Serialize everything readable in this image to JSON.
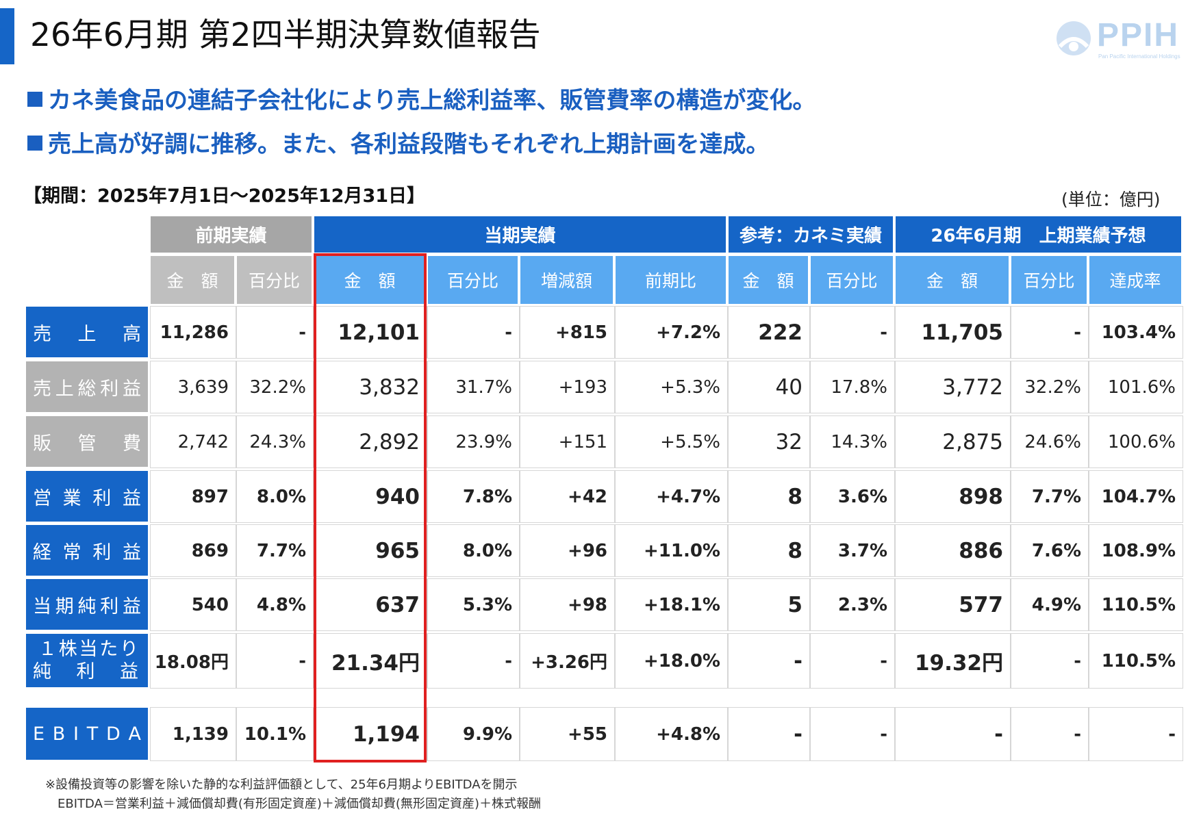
{
  "title": "26年6月期 第2四半期決算数値報告",
  "logo": {
    "text": "PPIH",
    "subtext": "Pan Pacific International Holdings"
  },
  "bullets": [
    "カネ美食品の連結子会社化により売上総利益率、販管費率の構造が変化。",
    "売上高が好調に推移。また、各利益段階もそれぞれ上期計画を達成。"
  ],
  "period": "【期間：2025年7月1日〜2025年12月31日】",
  "unit": "(単位：億円)",
  "table": {
    "groups": [
      "前期実績",
      "当期実績",
      "参考：カネミ実績",
      "26年6月期　上期業績予想"
    ],
    "subheaders": [
      "金　額",
      "百分比",
      "金　額",
      "百分比",
      "増減額",
      "前期比",
      "金　額",
      "百分比",
      "金　額",
      "百分比",
      "達成率"
    ],
    "rows": [
      {
        "label": [
          "売",
          "上",
          "高"
        ],
        "cells": [
          "11,286",
          "-",
          "12,101",
          "-",
          "+815",
          "+7.2%",
          "222",
          "-",
          "11,705",
          "-",
          "103.4%"
        ]
      },
      {
        "label": [
          "売",
          "上",
          "総",
          "利",
          "益"
        ],
        "cells": [
          "3,639",
          "32.2%",
          "3,832",
          "31.7%",
          "+193",
          "+5.3%",
          "40",
          "17.8%",
          "3,772",
          "32.2%",
          "101.6%"
        ]
      },
      {
        "label": [
          "販",
          "管",
          "費"
        ],
        "cells": [
          "2,742",
          "24.3%",
          "2,892",
          "23.9%",
          "+151",
          "+5.5%",
          "32",
          "14.3%",
          "2,875",
          "24.6%",
          "100.6%"
        ]
      },
      {
        "label": [
          "営",
          "業",
          "利",
          "益"
        ],
        "cells": [
          "897",
          "8.0%",
          "940",
          "7.8%",
          "+42",
          "+4.7%",
          "8",
          "3.6%",
          "898",
          "7.7%",
          "104.7%"
        ]
      },
      {
        "label": [
          "経",
          "常",
          "利",
          "益"
        ],
        "cells": [
          "869",
          "7.7%",
          "965",
          "8.0%",
          "+96",
          "+11.0%",
          "8",
          "3.7%",
          "886",
          "7.6%",
          "108.9%"
        ]
      },
      {
        "label": [
          "当",
          "期",
          "純",
          "利",
          "益"
        ],
        "cells": [
          "540",
          "4.8%",
          "637",
          "5.3%",
          "+98",
          "+18.1%",
          "5",
          "2.3%",
          "577",
          "4.9%",
          "110.5%"
        ]
      },
      {
        "label_line1": [
          "１",
          "株",
          "当",
          "た",
          "り"
        ],
        "label_line2": [
          "純",
          "利",
          "益"
        ],
        "cells": [
          "18.08円",
          "-",
          "21.34円",
          "-",
          "+3.26円",
          "+18.0%",
          "-",
          "-",
          "19.32円",
          "-",
          "110.5%"
        ]
      },
      {
        "label": [
          "E",
          "B",
          "I",
          "T",
          "D",
          "A"
        ],
        "cells": [
          "1,139",
          "10.1%",
          "1,194",
          "9.9%",
          "+55",
          "+4.8%",
          "-",
          "-",
          "-",
          "-",
          "-"
        ]
      }
    ]
  },
  "notes": [
    "※設備投資等の影響を除いた静的な利益評価額として、25年6月期よりEBITDAを開示",
    "EBITDA＝営業利益＋減価償却費(有形固定資産)＋減価償却費(無形固定資産)＋株式報酬"
  ],
  "colors": {
    "accent": "#1565c7",
    "accent_light": "#59a9f1",
    "header_gray": "#a6a6a6",
    "highlight_box": "#e02020"
  }
}
